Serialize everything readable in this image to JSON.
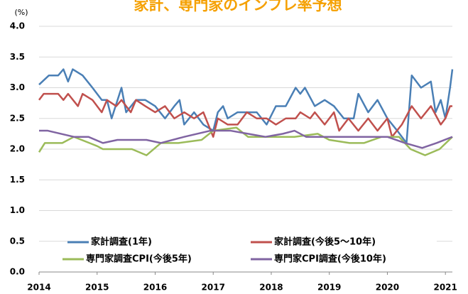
{
  "chart_data": {
    "type": "line",
    "title": "家計、専門家のインフレ率予想",
    "y_unit": "(%)",
    "xlim": [
      2014,
      2021.12
    ],
    "xticks": [
      2014,
      2015,
      2016,
      2017,
      2018,
      2019,
      2020,
      2021
    ],
    "ylim": [
      0,
      4
    ],
    "yticks": [
      {
        "value": 0,
        "label": "0.0"
      },
      {
        "value": 0.5,
        "label": "0.5"
      },
      {
        "value": 1,
        "label": "1.0"
      },
      {
        "value": 1.5,
        "label": "1.5"
      },
      {
        "value": 2,
        "label": "2.0"
      },
      {
        "value": 2.5,
        "label": "2.5"
      },
      {
        "value": 3,
        "label": "3.0"
      },
      {
        "value": 3.5,
        "label": "3.5"
      },
      {
        "value": 4,
        "label": "4.0"
      }
    ],
    "grid": true,
    "series": [
      {
        "name": "家計調査(1年)",
        "color": "#4a7fb5",
        "x": [
          2014.0,
          2014.17,
          2014.33,
          2014.42,
          2014.5,
          2014.58,
          2014.75,
          2014.92,
          2015.08,
          2015.17,
          2015.25,
          2015.42,
          2015.5,
          2015.67,
          2015.83,
          2016.0,
          2016.17,
          2016.33,
          2016.42,
          2016.5,
          2016.67,
          2016.83,
          2017.0,
          2017.08,
          2017.17,
          2017.25,
          2017.42,
          2017.58,
          2017.75,
          2017.92,
          2018.08,
          2018.25,
          2018.42,
          2018.5,
          2018.58,
          2018.75,
          2018.92,
          2019.08,
          2019.25,
          2019.42,
          2019.5,
          2019.67,
          2019.83,
          2020.0,
          2020.17,
          2020.33,
          2020.42,
          2020.58,
          2020.75,
          2020.83,
          2020.92,
          2021.0,
          2021.08,
          2021.12
        ],
        "values": [
          3.05,
          3.2,
          3.2,
          3.3,
          3.1,
          3.3,
          3.2,
          3.0,
          2.8,
          2.8,
          2.5,
          3.0,
          2.6,
          2.8,
          2.8,
          2.7,
          2.5,
          2.7,
          2.8,
          2.4,
          2.6,
          2.4,
          2.3,
          2.6,
          2.7,
          2.5,
          2.6,
          2.6,
          2.6,
          2.4,
          2.7,
          2.7,
          3.0,
          2.9,
          3.0,
          2.7,
          2.8,
          2.7,
          2.5,
          2.5,
          2.9,
          2.6,
          2.8,
          2.5,
          2.3,
          2.1,
          3.2,
          3.0,
          3.1,
          2.6,
          2.8,
          2.5,
          3.0,
          3.3
        ]
      },
      {
        "name": "家計調査(今後5～10年)",
        "color": "#c0504d",
        "x": [
          2014.0,
          2014.08,
          2014.33,
          2014.42,
          2014.5,
          2014.67,
          2014.75,
          2014.92,
          2015.08,
          2015.17,
          2015.33,
          2015.42,
          2015.58,
          2015.67,
          2015.83,
          2016.0,
          2016.17,
          2016.33,
          2016.5,
          2016.67,
          2016.83,
          2017.0,
          2017.08,
          2017.25,
          2017.42,
          2017.58,
          2017.75,
          2017.92,
          2018.08,
          2018.25,
          2018.42,
          2018.5,
          2018.67,
          2018.75,
          2018.92,
          2019.08,
          2019.17,
          2019.33,
          2019.5,
          2019.67,
          2019.83,
          2020.0,
          2020.08,
          2020.25,
          2020.42,
          2020.58,
          2020.75,
          2020.92,
          2021.0,
          2021.08,
          2021.12
        ],
        "values": [
          2.8,
          2.9,
          2.9,
          2.8,
          2.9,
          2.7,
          2.9,
          2.8,
          2.6,
          2.8,
          2.7,
          2.8,
          2.6,
          2.8,
          2.7,
          2.6,
          2.7,
          2.5,
          2.6,
          2.5,
          2.6,
          2.2,
          2.5,
          2.4,
          2.4,
          2.6,
          2.5,
          2.5,
          2.4,
          2.5,
          2.5,
          2.6,
          2.5,
          2.6,
          2.4,
          2.6,
          2.3,
          2.5,
          2.3,
          2.5,
          2.3,
          2.5,
          2.2,
          2.4,
          2.7,
          2.5,
          2.7,
          2.4,
          2.5,
          2.7,
          2.7
        ]
      },
      {
        "name": "専門家調査CPI(今後5年)",
        "color": "#9bbb59",
        "x": [
          2014.0,
          2014.1,
          2014.4,
          2014.6,
          2015.0,
          2015.1,
          2015.6,
          2015.85,
          2016.1,
          2016.4,
          2016.8,
          2017.0,
          2017.4,
          2017.6,
          2018.0,
          2018.4,
          2018.8,
          2019.0,
          2019.35,
          2019.6,
          2019.9,
          2020.2,
          2020.4,
          2020.65,
          2020.9,
          2021.12
        ],
        "values": [
          1.95,
          2.1,
          2.1,
          2.2,
          2.05,
          2.0,
          2.0,
          1.9,
          2.1,
          2.1,
          2.15,
          2.3,
          2.35,
          2.2,
          2.2,
          2.2,
          2.25,
          2.15,
          2.1,
          2.1,
          2.2,
          2.2,
          2.0,
          1.9,
          2.0,
          2.2
        ]
      },
      {
        "name": "専門家CPI調査(今後10年)",
        "color": "#8064a2",
        "x": [
          2014.0,
          2014.15,
          2014.6,
          2014.85,
          2015.1,
          2015.35,
          2015.85,
          2016.1,
          2016.5,
          2016.95,
          2017.3,
          2017.6,
          2017.9,
          2018.2,
          2018.4,
          2018.6,
          2019.0,
          2019.4,
          2020.0,
          2020.3,
          2020.6,
          2020.85,
          2021.12
        ],
        "values": [
          2.3,
          2.3,
          2.2,
          2.2,
          2.1,
          2.15,
          2.15,
          2.1,
          2.2,
          2.3,
          2.3,
          2.25,
          2.2,
          2.25,
          2.3,
          2.2,
          2.2,
          2.2,
          2.2,
          2.1,
          2.02,
          2.1,
          2.2
        ]
      }
    ]
  }
}
